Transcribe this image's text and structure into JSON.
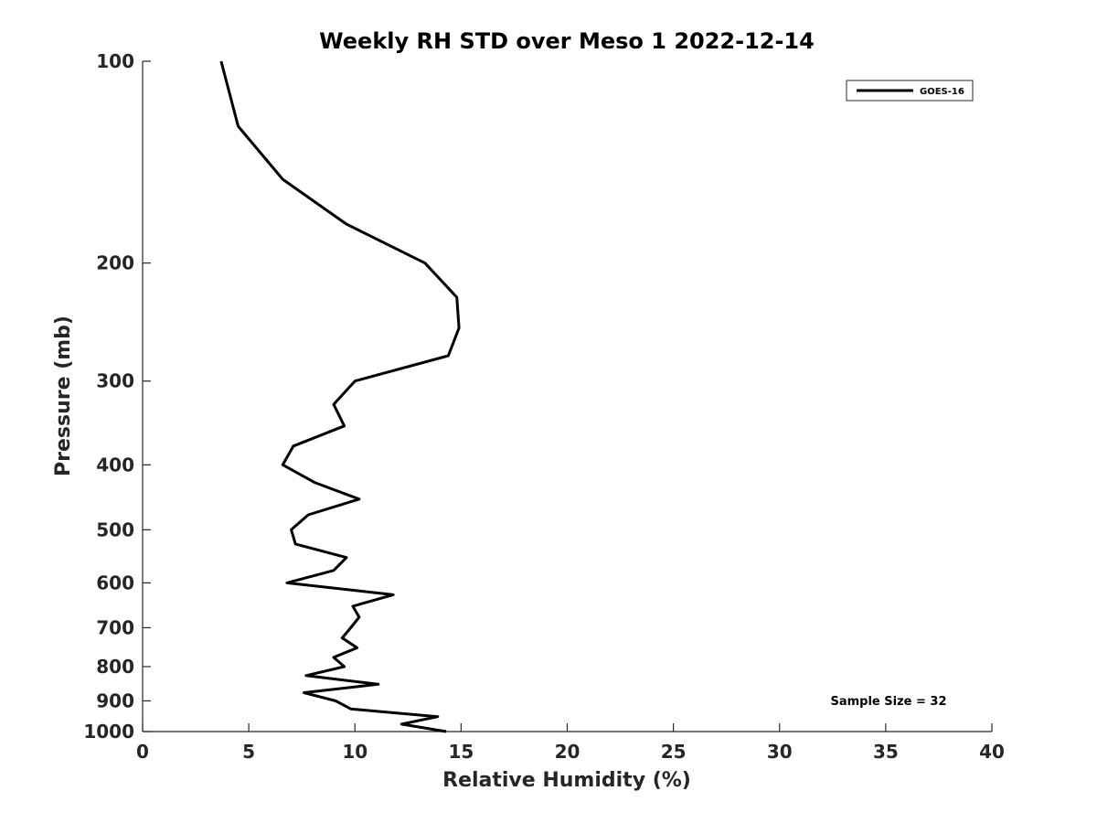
{
  "chart_data": {
    "type": "line",
    "title": "Weekly RH STD over Meso 1 2022-12-14",
    "xlabel": "Relative Humidity (%)",
    "ylabel": "Pressure (mb)",
    "xlim": [
      0,
      40
    ],
    "ylim": [
      100,
      1000
    ],
    "y_scale": "log",
    "y_reversed": true,
    "x_ticks": [
      0,
      5,
      10,
      15,
      20,
      25,
      30,
      35,
      40
    ],
    "x_tick_labels": [
      "0",
      "5",
      "10",
      "15",
      "20",
      "25",
      "30",
      "35",
      "40"
    ],
    "y_ticks": [
      100,
      200,
      300,
      400,
      500,
      600,
      700,
      800,
      900,
      1000
    ],
    "y_tick_labels": [
      "100",
      "200",
      "300",
      "400",
      "500",
      "600",
      "700",
      "800",
      "900",
      "1000"
    ],
    "grid": false,
    "legend_position": "top-right",
    "annotation": "Sample Size = 32",
    "series": [
      {
        "name": "GOES-16",
        "color": "#000000",
        "points": [
          [
            3.7,
            100
          ],
          [
            4.5,
            125
          ],
          [
            6.6,
            150
          ],
          [
            9.6,
            175
          ],
          [
            13.3,
            200
          ],
          [
            14.8,
            225
          ],
          [
            14.9,
            250
          ],
          [
            14.4,
            275
          ],
          [
            10.0,
            300
          ],
          [
            9.0,
            325
          ],
          [
            9.5,
            350
          ],
          [
            7.1,
            375
          ],
          [
            6.6,
            400
          ],
          [
            8.1,
            425
          ],
          [
            10.2,
            450
          ],
          [
            7.8,
            475
          ],
          [
            7.0,
            500
          ],
          [
            7.2,
            525
          ],
          [
            9.6,
            550
          ],
          [
            9.0,
            575
          ],
          [
            6.8,
            600
          ],
          [
            11.8,
            625
          ],
          [
            9.9,
            650
          ],
          [
            10.2,
            675
          ],
          [
            9.8,
            700
          ],
          [
            9.4,
            725
          ],
          [
            10.1,
            750
          ],
          [
            9.0,
            775
          ],
          [
            9.5,
            800
          ],
          [
            7.7,
            825
          ],
          [
            11.1,
            850
          ],
          [
            7.6,
            875
          ],
          [
            9.1,
            900
          ],
          [
            9.8,
            925
          ],
          [
            13.9,
            950
          ],
          [
            12.2,
            975
          ],
          [
            14.3,
            1000
          ]
        ]
      }
    ]
  }
}
